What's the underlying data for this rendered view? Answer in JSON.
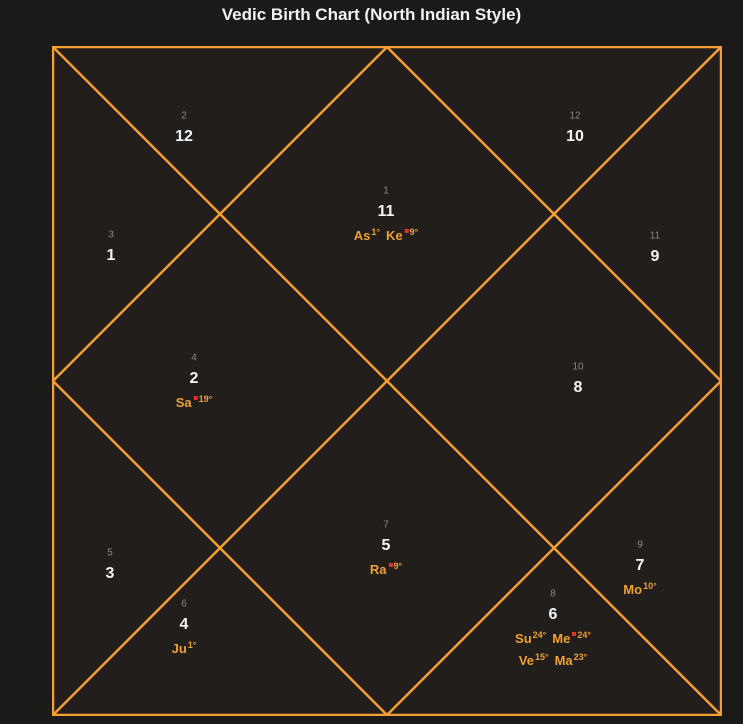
{
  "title": "Vedic Birth Chart (North Indian Style)",
  "colors": {
    "line": "#f5a033",
    "planet": "#f0a030",
    "retrograde_marker": "#e03030"
  },
  "houses": [
    {
      "house": "1",
      "sign": "11",
      "planets": [
        {
          "abbr": "As",
          "deg": "1°",
          "retro": false
        },
        {
          "abbr": "Ke",
          "deg": "9°",
          "retro": true
        }
      ]
    },
    {
      "house": "2",
      "sign": "12",
      "planets": []
    },
    {
      "house": "3",
      "sign": "1",
      "planets": []
    },
    {
      "house": "4",
      "sign": "2",
      "planets": [
        {
          "abbr": "Sa",
          "deg": "19°",
          "retro": true
        }
      ]
    },
    {
      "house": "5",
      "sign": "3",
      "planets": []
    },
    {
      "house": "6",
      "sign": "4",
      "planets": [
        {
          "abbr": "Ju",
          "deg": "1°",
          "retro": false
        }
      ]
    },
    {
      "house": "7",
      "sign": "5",
      "planets": [
        {
          "abbr": "Ra",
          "deg": "9°",
          "retro": true
        }
      ]
    },
    {
      "house": "8",
      "sign": "6",
      "planets": [
        {
          "abbr": "Su",
          "deg": "24°",
          "retro": false
        },
        {
          "abbr": "Me",
          "deg": "24°",
          "retro": true
        },
        {
          "abbr": "Ve",
          "deg": "15°",
          "retro": false
        },
        {
          "abbr": "Ma",
          "deg": "23°",
          "retro": false
        }
      ]
    },
    {
      "house": "9",
      "sign": "7",
      "planets": [
        {
          "abbr": "Mo",
          "deg": "10°",
          "retro": false
        }
      ]
    },
    {
      "house": "10",
      "sign": "8",
      "planets": []
    },
    {
      "house": "11",
      "sign": "9",
      "planets": []
    },
    {
      "house": "12",
      "sign": "10",
      "planets": []
    }
  ]
}
